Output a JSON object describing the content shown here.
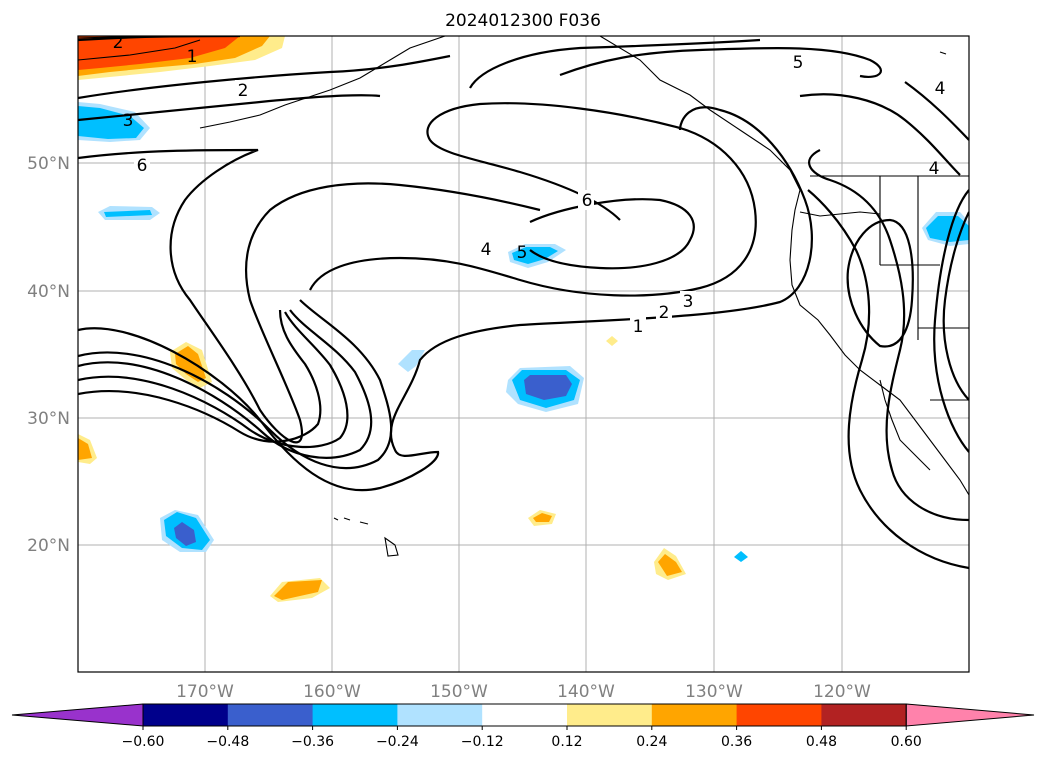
{
  "title": "2024012300 F036",
  "lat_labels": [
    "50°N",
    "40°N",
    "30°N",
    "20°N"
  ],
  "lon_labels": [
    "170°W",
    "160°W",
    "150°W",
    "140°W",
    "130°W",
    "120°W"
  ],
  "contour_labels": [
    "1",
    "2",
    "3",
    "4",
    "5",
    "6"
  ],
  "colorbar": {
    "tick_labels": [
      "−0.60",
      "−0.48",
      "−0.36",
      "−0.24",
      "−0.12",
      "0.12",
      "0.24",
      "0.36",
      "0.48",
      "0.60"
    ],
    "colors": [
      "#9932cc",
      "#00008b",
      "#3a5fcd",
      "#00bfff",
      "#b0e2ff",
      "#ffffff",
      "#ffec8b",
      "#ffa500",
      "#ff4500",
      "#b22222",
      "#ff82ab"
    ]
  }
}
